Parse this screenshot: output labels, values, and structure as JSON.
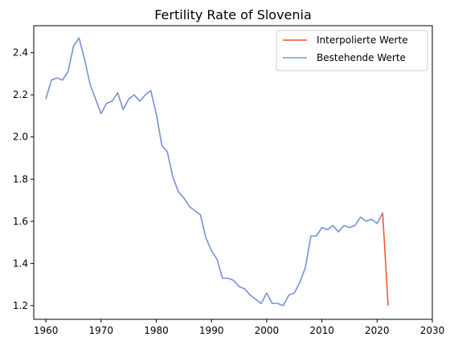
{
  "chart_data": {
    "type": "line",
    "title": "Fertility Rate of Slovenia",
    "xlabel": "",
    "ylabel": "",
    "xlim": [
      1957.8,
      2030
    ],
    "ylim": [
      1.135,
      2.528
    ],
    "xticks": [
      1960,
      1970,
      1980,
      1990,
      2000,
      2010,
      2020,
      2030
    ],
    "yticks": [
      1.2,
      1.4,
      1.6,
      1.8,
      2.0,
      2.2,
      2.4
    ],
    "xtick_labels": [
      "1960",
      "1970",
      "1980",
      "1990",
      "2000",
      "2010",
      "2020",
      "2030"
    ],
    "ytick_labels": [
      "1.2",
      "1.4",
      "1.6",
      "1.8",
      "2.0",
      "2.2",
      "2.4"
    ],
    "grid": false,
    "legend_position": "top-right",
    "series": [
      {
        "name": "Interpolierte Werte",
        "color": "#f4511e",
        "x": [
          1960,
          1961,
          1962,
          1963,
          1964,
          1965,
          1966,
          1967,
          1968,
          1969,
          1970,
          1971,
          1972,
          1973,
          1974,
          1975,
          1976,
          1977,
          1978,
          1979,
          1980,
          1981,
          1982,
          1983,
          1984,
          1985,
          1986,
          1987,
          1988,
          1989,
          1990,
          1991,
          1992,
          1993,
          1994,
          1995,
          1996,
          1997,
          1998,
          1999,
          2000,
          2001,
          2002,
          2003,
          2004,
          2005,
          2006,
          2007,
          2008,
          2009,
          2010,
          2011,
          2012,
          2013,
          2014,
          2015,
          2016,
          2017,
          2018,
          2019,
          2020,
          2021,
          2022
        ],
        "values": [
          2.18,
          2.27,
          2.28,
          2.27,
          2.31,
          2.43,
          2.47,
          2.37,
          2.25,
          2.18,
          2.11,
          2.16,
          2.17,
          2.21,
          2.13,
          2.18,
          2.2,
          2.17,
          2.2,
          2.22,
          2.11,
          1.96,
          1.93,
          1.81,
          1.74,
          1.71,
          1.67,
          1.65,
          1.63,
          1.52,
          1.46,
          1.42,
          1.33,
          1.33,
          1.32,
          1.29,
          1.28,
          1.25,
          1.23,
          1.21,
          1.26,
          1.21,
          1.21,
          1.2,
          1.25,
          1.26,
          1.31,
          1.38,
          1.53,
          1.53,
          1.57,
          1.56,
          1.58,
          1.55,
          1.58,
          1.57,
          1.58,
          1.62,
          1.6,
          1.61,
          1.59,
          1.64,
          1.2
        ]
      },
      {
        "name": "Bestehende Werte",
        "color": "#6f9be5",
        "x": [
          1960,
          1961,
          1962,
          1963,
          1964,
          1965,
          1966,
          1967,
          1968,
          1969,
          1970,
          1971,
          1972,
          1973,
          1974,
          1975,
          1976,
          1977,
          1978,
          1979,
          1980,
          1981,
          1982,
          1983,
          1984,
          1985,
          1986,
          1987,
          1988,
          1989,
          1990,
          1991,
          1992,
          1993,
          1994,
          1995,
          1996,
          1997,
          1998,
          1999,
          2000,
          2001,
          2002,
          2003,
          2004,
          2005,
          2006,
          2007,
          2008,
          2009,
          2010,
          2011,
          2012,
          2013,
          2014,
          2015,
          2016,
          2017,
          2018,
          2019,
          2020,
          2021
        ],
        "values": [
          2.18,
          2.27,
          2.28,
          2.27,
          2.31,
          2.43,
          2.47,
          2.37,
          2.25,
          2.18,
          2.11,
          2.16,
          2.17,
          2.21,
          2.13,
          2.18,
          2.2,
          2.17,
          2.2,
          2.22,
          2.11,
          1.96,
          1.93,
          1.81,
          1.74,
          1.71,
          1.67,
          1.65,
          1.63,
          1.52,
          1.46,
          1.42,
          1.33,
          1.33,
          1.32,
          1.29,
          1.28,
          1.25,
          1.23,
          1.21,
          1.26,
          1.21,
          1.21,
          1.2,
          1.25,
          1.26,
          1.31,
          1.38,
          1.53,
          1.53,
          1.57,
          1.56,
          1.58,
          1.55,
          1.58,
          1.57,
          1.58,
          1.62,
          1.6,
          1.61,
          1.59,
          1.64
        ]
      }
    ]
  }
}
